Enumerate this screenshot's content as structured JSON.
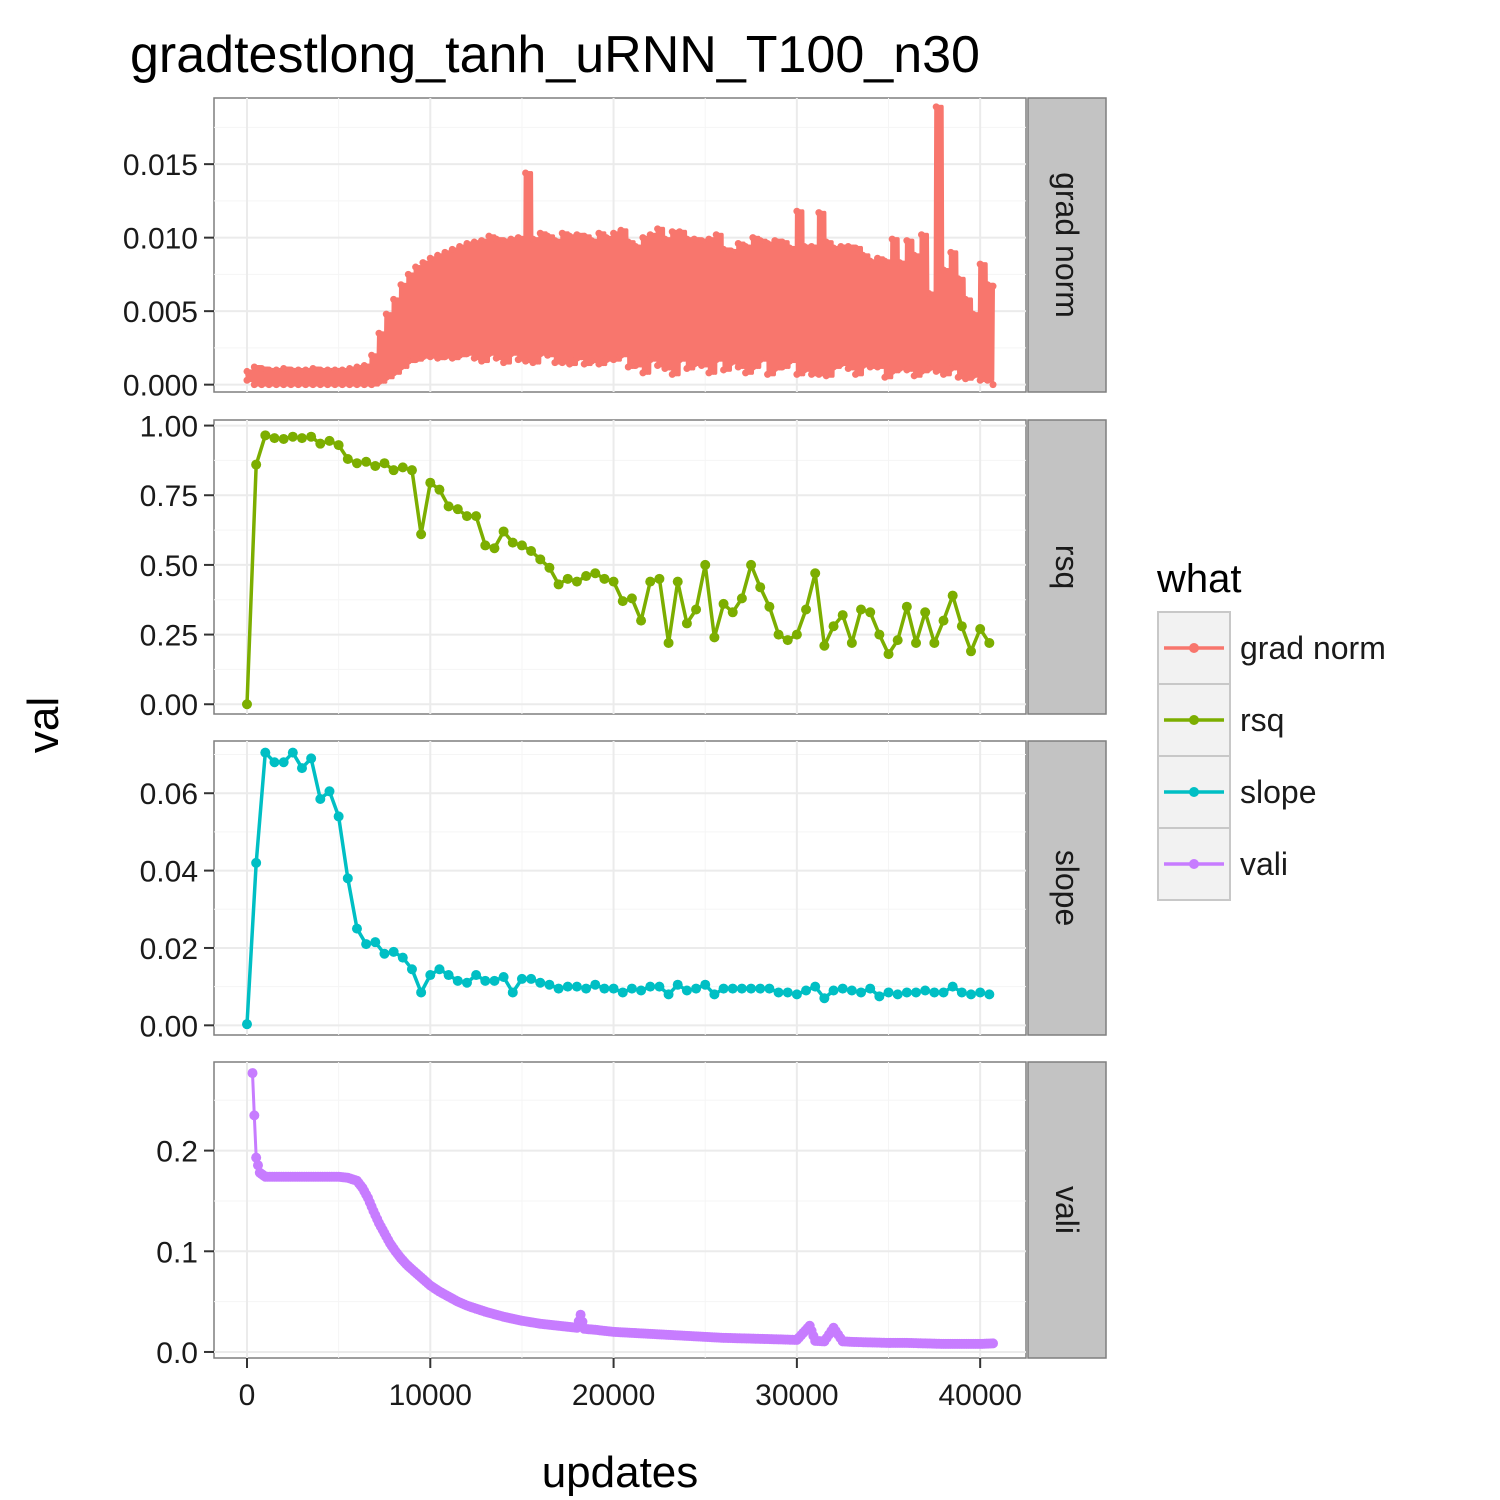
{
  "chart_data": {
    "type": "line",
    "title": "gradtestlong_tanh_uRNN_T100_n30",
    "xlabel": "updates",
    "ylabel": "val",
    "xlim": [
      -1800,
      42500
    ],
    "x_ticks": [
      0,
      10000,
      20000,
      30000,
      40000
    ],
    "x_tick_labels": [
      "0",
      "10000",
      "20000",
      "30000",
      "40000"
    ],
    "grid": true,
    "legend": {
      "title": "what",
      "placement": "right",
      "entries": [
        "grad norm",
        "rsq",
        "slope",
        "vali"
      ]
    },
    "colors": {
      "grad norm": "#F8766D",
      "rsq": "#7CAE00",
      "slope": "#00BFC4",
      "vali": "#C77CFF"
    },
    "panels": [
      {
        "strip": "grad norm",
        "ylim": [
          -0.0005,
          0.0195
        ],
        "y_ticks": [
          0,
          0.005,
          0.01,
          0.015
        ],
        "y_tick_labels": [
          "0.000",
          "0.005",
          "0.010",
          "0.015"
        ],
        "series": [
          {
            "name": "grad norm",
            "kind": "dense_line",
            "points_x": [
              0,
              400,
              800,
              1200,
              1600,
              2000,
              2400,
              2800,
              3200,
              3600,
              4000,
              4400,
              4800,
              5200,
              5600,
              6000,
              6400,
              6800,
              7200,
              7600,
              8000,
              8400,
              8800,
              9200,
              9600,
              10000,
              10400,
              10800,
              11200,
              11600,
              12000,
              12400,
              12800,
              13200,
              13600,
              14000,
              14400,
              14800,
              15200,
              15600,
              16000,
              16400,
              16800,
              17200,
              17600,
              18000,
              18400,
              18800,
              19200,
              19600,
              20000,
              20400,
              20800,
              21200,
              21600,
              22000,
              22400,
              22800,
              23200,
              23600,
              24000,
              24400,
              24800,
              25200,
              25600,
              26000,
              26400,
              26800,
              27200,
              27600,
              28000,
              28400,
              28800,
              29200,
              29600,
              30000,
              30400,
              30800,
              31200,
              31600,
              32000,
              32400,
              32800,
              33200,
              33600,
              34000,
              34400,
              34800,
              35200,
              35600,
              36000,
              36400,
              36800,
              37200,
              37600,
              38000,
              38400,
              38800,
              39200,
              39600,
              40000,
              40400,
              40700
            ],
            "max": [
              0.0009,
              0.0012,
              0.0011,
              0.001,
              0.001,
              0.0011,
              0.001,
              0.001,
              0.001,
              0.0011,
              0.001,
              0.001,
              0.001,
              0.001,
              0.0011,
              0.0012,
              0.0013,
              0.002,
              0.0035,
              0.0048,
              0.0058,
              0.0068,
              0.0075,
              0.008,
              0.0083,
              0.0086,
              0.0088,
              0.009,
              0.0092,
              0.0094,
              0.0096,
              0.0097,
              0.0098,
              0.0101,
              0.0099,
              0.0098,
              0.0099,
              0.01,
              0.0144,
              0.0099,
              0.0103,
              0.0101,
              0.0098,
              0.0103,
              0.0101,
              0.0102,
              0.0101,
              0.0098,
              0.0103,
              0.01,
              0.0103,
              0.0105,
              0.0097,
              0.0094,
              0.01,
              0.0102,
              0.0106,
              0.0099,
              0.0104,
              0.0104,
              0.0099,
              0.0099,
              0.0098,
              0.0099,
              0.0102,
              0.0092,
              0.0091,
              0.0096,
              0.0094,
              0.01,
              0.0098,
              0.0096,
              0.0098,
              0.0097,
              0.0093,
              0.0118,
              0.0094,
              0.0094,
              0.0117,
              0.0097,
              0.0093,
              0.0094,
              0.0094,
              0.0093,
              0.0088,
              0.0084,
              0.0086,
              0.0084,
              0.0099,
              0.0083,
              0.0098,
              0.0088,
              0.0102,
              0.0062,
              0.0189,
              0.0078,
              0.009,
              0.0072,
              0.0058,
              0.0048,
              0.0082,
              0.0068,
              0.0067
            ],
            "min": [
              0.0003,
              0.0,
              0.0,
              0.0,
              0.0,
              0.0,
              0.0,
              0.0,
              0.0,
              0.0,
              0.0,
              0.0,
              0.0,
              0.0,
              0.0,
              0.0,
              0.0,
              0.0,
              0.0002,
              0.0005,
              0.0008,
              0.0012,
              0.0016,
              0.0017,
              0.0019,
              0.0019,
              0.0018,
              0.0019,
              0.0018,
              0.002,
              0.0021,
              0.0018,
              0.0016,
              0.0021,
              0.0018,
              0.0015,
              0.0021,
              0.0017,
              0.0016,
              0.0015,
              0.0021,
              0.002,
              0.0015,
              0.0015,
              0.0014,
              0.0018,
              0.0014,
              0.0016,
              0.0014,
              0.0017,
              0.0017,
              0.002,
              0.0012,
              0.0013,
              0.0008,
              0.0017,
              0.0013,
              0.0011,
              0.0007,
              0.0017,
              0.0011,
              0.0014,
              0.0013,
              0.0008,
              0.0017,
              0.001,
              0.0015,
              0.0012,
              0.0008,
              0.0012,
              0.0017,
              0.0007,
              0.0011,
              0.0012,
              0.0016,
              0.0007,
              0.001,
              0.0007,
              0.0007,
              0.0006,
              0.0012,
              0.0014,
              0.0011,
              0.0007,
              0.0013,
              0.0012,
              0.0012,
              0.0005,
              0.0009,
              0.0011,
              0.001,
              0.0006,
              0.0009,
              0.0011,
              0.0009,
              0.0007,
              0.0011,
              0.0005,
              0.0004,
              0.0006,
              0.0003,
              0.0003,
              0.0
            ]
          }
        ]
      },
      {
        "strip": "rsq",
        "ylim": [
          -0.035,
          1.02
        ],
        "y_ticks": [
          0,
          0.25,
          0.5,
          0.75,
          1.0
        ],
        "y_tick_labels": [
          "0.00",
          "0.25",
          "0.50",
          "0.75",
          "1.00"
        ],
        "series": [
          {
            "name": "rsq",
            "x": [
              0,
              500,
              1000,
              1500,
              2000,
              2500,
              3000,
              3500,
              4000,
              4500,
              5000,
              5500,
              6000,
              6500,
              7000,
              7500,
              8000,
              8500,
              9000,
              9500,
              10000,
              10500,
              11000,
              11500,
              12000,
              12500,
              13000,
              13500,
              14000,
              14500,
              15000,
              15500,
              16000,
              16500,
              17000,
              17500,
              18000,
              18500,
              19000,
              19500,
              20000,
              20500,
              21000,
              21500,
              22000,
              22500,
              23000,
              23500,
              24000,
              24500,
              25000,
              25500,
              26000,
              26500,
              27000,
              27500,
              28000,
              28500,
              29000,
              29500,
              30000,
              30500,
              31000,
              31500,
              32000,
              32500,
              33000,
              33500,
              34000,
              34500,
              35000,
              35500,
              36000,
              36500,
              37000,
              37500,
              38000,
              38500,
              39000,
              39500,
              40000,
              40500
            ],
            "values": [
              0.0,
              0.86,
              0.965,
              0.955,
              0.952,
              0.96,
              0.955,
              0.96,
              0.935,
              0.945,
              0.93,
              0.88,
              0.865,
              0.87,
              0.855,
              0.865,
              0.84,
              0.85,
              0.84,
              0.61,
              0.795,
              0.77,
              0.71,
              0.7,
              0.675,
              0.675,
              0.57,
              0.56,
              0.62,
              0.58,
              0.57,
              0.55,
              0.52,
              0.49,
              0.43,
              0.45,
              0.44,
              0.46,
              0.47,
              0.45,
              0.44,
              0.37,
              0.38,
              0.3,
              0.44,
              0.45,
              0.22,
              0.44,
              0.29,
              0.34,
              0.5,
              0.24,
              0.36,
              0.33,
              0.38,
              0.5,
              0.42,
              0.35,
              0.25,
              0.23,
              0.25,
              0.34,
              0.47,
              0.21,
              0.28,
              0.32,
              0.22,
              0.34,
              0.33,
              0.25,
              0.18,
              0.23,
              0.35,
              0.22,
              0.33,
              0.22,
              0.3,
              0.39,
              0.28,
              0.19,
              0.27,
              0.22
            ]
          }
        ]
      },
      {
        "strip": "slope",
        "ylim": [
          -0.0025,
          0.0735
        ],
        "y_ticks": [
          0,
          0.02,
          0.04,
          0.06
        ],
        "y_tick_labels": [
          "0.00",
          "0.02",
          "0.04",
          "0.06"
        ],
        "series": [
          {
            "name": "slope",
            "x": [
              0,
              500,
              1000,
              1500,
              2000,
              2500,
              3000,
              3500,
              4000,
              4500,
              5000,
              5500,
              6000,
              6500,
              7000,
              7500,
              8000,
              8500,
              9000,
              9500,
              10000,
              10500,
              11000,
              11500,
              12000,
              12500,
              13000,
              13500,
              14000,
              14500,
              15000,
              15500,
              16000,
              16500,
              17000,
              17500,
              18000,
              18500,
              19000,
              19500,
              20000,
              20500,
              21000,
              21500,
              22000,
              22500,
              23000,
              23500,
              24000,
              24500,
              25000,
              25500,
              26000,
              26500,
              27000,
              27500,
              28000,
              28500,
              29000,
              29500,
              30000,
              30500,
              31000,
              31500,
              32000,
              32500,
              33000,
              33500,
              34000,
              34500,
              35000,
              35500,
              36000,
              36500,
              37000,
              37500,
              38000,
              38500,
              39000,
              39500,
              40000,
              40500
            ],
            "values": [
              0.0003,
              0.042,
              0.0705,
              0.068,
              0.068,
              0.0705,
              0.0665,
              0.069,
              0.0585,
              0.0605,
              0.054,
              0.038,
              0.025,
              0.021,
              0.0215,
              0.0185,
              0.019,
              0.0175,
              0.0145,
              0.0085,
              0.013,
              0.0145,
              0.013,
              0.0115,
              0.011,
              0.013,
              0.0115,
              0.0115,
              0.0125,
              0.0085,
              0.012,
              0.012,
              0.011,
              0.0105,
              0.0095,
              0.01,
              0.01,
              0.0095,
              0.0105,
              0.0095,
              0.0095,
              0.0085,
              0.0095,
              0.009,
              0.01,
              0.01,
              0.008,
              0.0105,
              0.009,
              0.0095,
              0.0105,
              0.008,
              0.0095,
              0.0095,
              0.0095,
              0.0095,
              0.0095,
              0.0095,
              0.0085,
              0.0085,
              0.008,
              0.009,
              0.01,
              0.007,
              0.009,
              0.0095,
              0.009,
              0.0085,
              0.0095,
              0.0075,
              0.0085,
              0.008,
              0.0085,
              0.0085,
              0.009,
              0.0085,
              0.0085,
              0.01,
              0.0085,
              0.008,
              0.0085,
              0.008
            ]
          }
        ]
      },
      {
        "strip": "vali",
        "ylim": [
          -0.006,
          0.288
        ],
        "y_ticks": [
          0.0,
          0.1,
          0.2
        ],
        "y_tick_labels": [
          "0.0",
          "0.1",
          "0.2"
        ],
        "series": [
          {
            "name": "vali",
            "kind": "dense_points",
            "x": [
              300,
              500,
              700,
              1000,
              1500,
              2000,
              3000,
              4000,
              5000,
              5500,
              6000,
              6300,
              6600,
              6900,
              7200,
              7500,
              7800,
              8100,
              8400,
              8700,
              9000,
              9500,
              10000,
              10500,
              11000,
              11500,
              12000,
              12500,
              13000,
              14000,
              15000,
              16000,
              17000,
              18000,
              18200,
              18400,
              19000,
              20000,
              21000,
              22000,
              23000,
              24000,
              25000,
              26000,
              27000,
              28000,
              29000,
              30000,
              30700,
              31000,
              31500,
              32000,
              32500,
              33000,
              34000,
              35000,
              36000,
              37000,
              38000,
              39000,
              40000,
              40700
            ],
            "values": [
              0.277,
              0.193,
              0.178,
              0.174,
              0.174,
              0.174,
              0.174,
              0.174,
              0.174,
              0.173,
              0.17,
              0.163,
              0.153,
              0.14,
              0.128,
              0.118,
              0.108,
              0.1,
              0.093,
              0.087,
              0.082,
              0.074,
              0.066,
              0.06,
              0.055,
              0.05,
              0.046,
              0.043,
              0.04,
              0.035,
              0.031,
              0.028,
              0.026,
              0.024,
              0.037,
              0.023,
              0.022,
              0.02,
              0.019,
              0.018,
              0.017,
              0.016,
              0.015,
              0.014,
              0.0135,
              0.013,
              0.0125,
              0.012,
              0.026,
              0.011,
              0.0105,
              0.024,
              0.0105,
              0.01,
              0.0095,
              0.009,
              0.009,
              0.0085,
              0.008,
              0.008,
              0.008,
              0.0085
            ]
          }
        ]
      }
    ]
  }
}
